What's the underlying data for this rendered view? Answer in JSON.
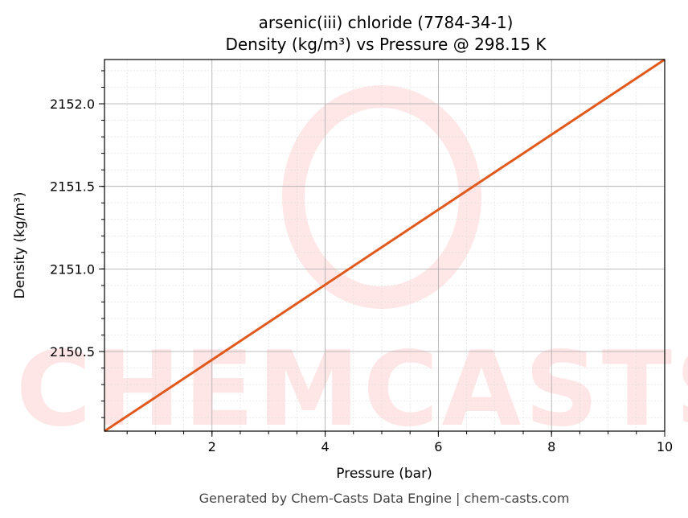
{
  "chart_data": {
    "type": "line",
    "title": "arsenic(iii) chloride (7784-34-1)",
    "subtitle": "Density (kg/m³) vs Pressure @ 298.15 K",
    "xlabel": "Pressure (bar)",
    "ylabel": "Density (kg/m³)",
    "xlim": [
      0.1,
      10
    ],
    "ylim": [
      2150.018,
      2152.268
    ],
    "xticks": [
      2,
      4,
      6,
      8,
      10
    ],
    "xtick_labels": [
      "2",
      "4",
      "6",
      "8",
      "10"
    ],
    "yticks": [
      2150.5,
      2151.0,
      2151.5,
      2152.0
    ],
    "ytick_labels": [
      "2150.5",
      "2151.0",
      "2151.5",
      "2152.0"
    ],
    "grid": true,
    "series": [
      {
        "x": [
          0.1,
          10
        ],
        "y": [
          2150.018,
          2152.268
        ],
        "color": "#e05a1e"
      }
    ],
    "watermark": "CHEMCASTS",
    "footer": "Generated by Chem-Casts Data Engine | chem-casts.com"
  }
}
